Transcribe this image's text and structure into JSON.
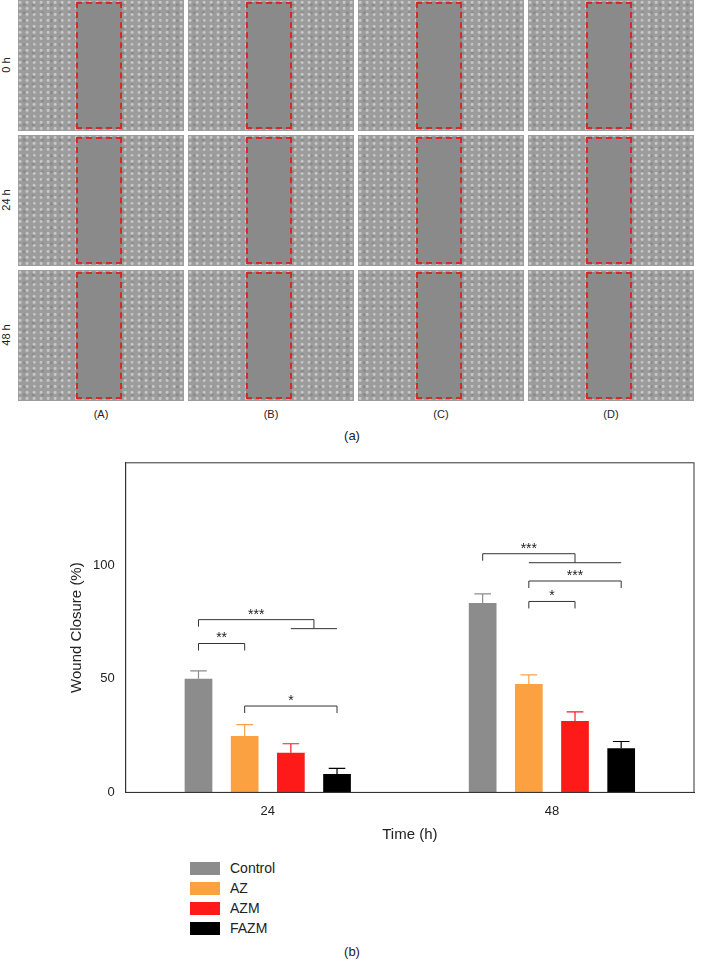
{
  "panel_a": {
    "label": "(a)",
    "rows": [
      "0 h",
      "24 h",
      "48 h"
    ],
    "columns": [
      "(A)",
      "(B)",
      "(C)",
      "(D)"
    ]
  },
  "chart_data": {
    "type": "bar",
    "panel_label": "(b)",
    "x_label": "Time (h)",
    "y_label": "Wound Closure (%)",
    "categories": [
      "24",
      "48"
    ],
    "series": [
      {
        "name": "Control",
        "color": "#8c8c8c",
        "values": [
          50,
          83.3
        ],
        "errors": [
          3.5,
          4
        ]
      },
      {
        "name": "AZ",
        "color": "#fba142",
        "values": [
          24.8,
          47.7
        ],
        "errors": [
          5,
          4
        ]
      },
      {
        "name": "AZM",
        "color": "#ff1a1a",
        "values": [
          17.4,
          31.4
        ],
        "errors": [
          4,
          4
        ]
      },
      {
        "name": "FAZM",
        "color": "#000000",
        "values": [
          8.1,
          19.4
        ],
        "errors": [
          2.5,
          3
        ]
      }
    ],
    "ylim": [
      0,
      145
    ],
    "yticks": [
      0,
      50,
      100
    ],
    "grid": false,
    "legend": "bottom",
    "annotations": [
      {
        "text": "**",
        "category": "24",
        "from": "Control",
        "to": [
          "AZ"
        ],
        "y": 65.5
      },
      {
        "text": "***",
        "category": "24",
        "from": "Control",
        "to": [
          "AZM",
          "FAZM"
        ],
        "y": 76
      },
      {
        "text": "*",
        "category": "24",
        "from": "AZ",
        "to": [
          "FAZM"
        ],
        "y": 38
      },
      {
        "text": "***",
        "category": "48",
        "from": "Control",
        "to": [
          "AZ",
          "AZM",
          "FAZM"
        ],
        "y": 105
      },
      {
        "text": "*",
        "category": "48",
        "from": "AZ",
        "to": [
          "AZM"
        ],
        "y": 84
      },
      {
        "text": "***",
        "category": "48",
        "from": "AZ",
        "to": [
          "FAZM"
        ],
        "y": 93
      }
    ]
  }
}
